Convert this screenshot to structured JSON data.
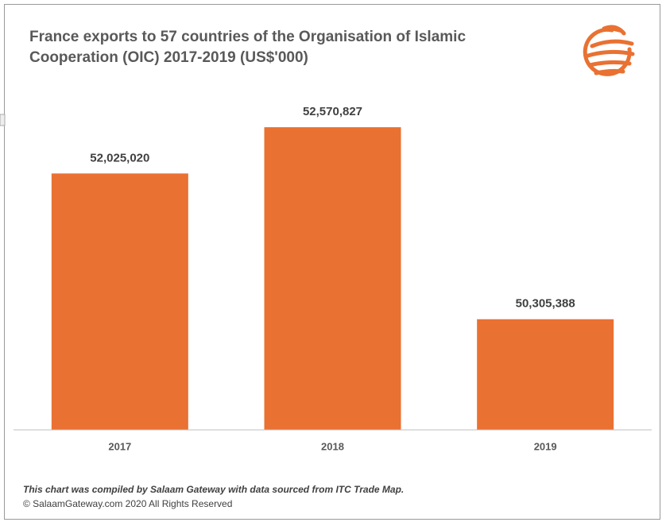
{
  "chart_data": {
    "type": "bar",
    "title": "France exports to 57 countries of the Organisation of Islamic Cooperation (OIC) 2017-2019 (US$'000)",
    "categories": [
      "2017",
      "2018",
      "2019"
    ],
    "values": [
      52025020,
      52570827,
      50305388
    ],
    "value_labels": [
      "52,025,020",
      "52,570,827",
      "50,305,388"
    ],
    "color": "#e97132",
    "ylim": [
      49000000,
      53500000
    ],
    "footnote": "This chart was compiled by Salaam Gateway with data sourced from ITC Trade Map.",
    "copyright": "© SalaamGateway.com 2020 All Rights Reserved"
  }
}
